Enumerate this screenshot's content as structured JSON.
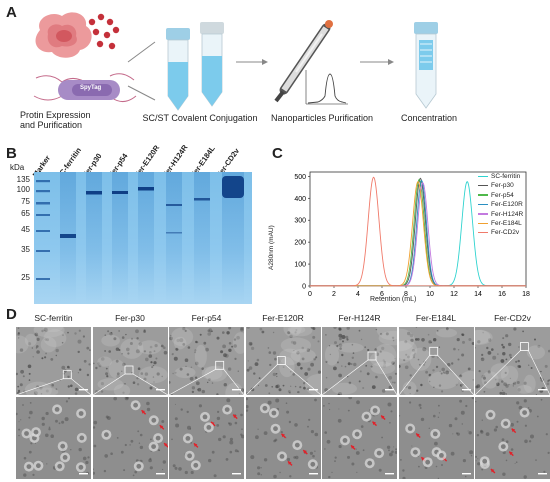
{
  "panels": {
    "a": "A",
    "b": "B",
    "c": "C",
    "d": "D"
  },
  "panel_a": {
    "step1_label": "Protin Expression\nand Purification",
    "step2_label": "SC/ST Covalent Conjugation",
    "step3_label": "Nanoparticles Purification",
    "step4_label": "Concentration",
    "bacterium_text": "SpyTag",
    "colors": {
      "cell": "#e8868a",
      "tube_liquid": "#8fd3ef",
      "cap_blue": "#9ecfe6",
      "red_dots": "#c4303a"
    }
  },
  "panel_b": {
    "unit_label": "kDa",
    "lanes": [
      "Marker",
      "SC-ferritin",
      "Fer-p30",
      "Fer-p54",
      "Fer-E120R",
      "Fer-H124R",
      "Fer-E184L",
      "Fer-CD2v"
    ],
    "marker_kda": [
      "135",
      "100",
      "75",
      "65",
      "45",
      "35",
      "25"
    ],
    "gel_color": "#6fb3e4"
  },
  "chart_data": {
    "type": "line",
    "xlabel": "Retention (mL)",
    "ylabel": "A280nm (mAU)",
    "xlim": [
      0,
      18
    ],
    "ylim": [
      0,
      520
    ],
    "xticks": [
      "0",
      "2",
      "4",
      "6",
      "8",
      "10",
      "12",
      "14",
      "16",
      "18"
    ],
    "yticks": [
      "0",
      "100",
      "200",
      "300",
      "400",
      "500"
    ],
    "legend_position": "top-right",
    "series": [
      {
        "name": "SC-ferritin",
        "color": "#2fd3cf",
        "peak_x": 13.1,
        "peak_y": 475,
        "width": 0.45
      },
      {
        "name": "Fer-p30",
        "color": "#555555",
        "peak_x": 9.2,
        "peak_y": 490,
        "width": 0.42
      },
      {
        "name": "Fer-p54",
        "color": "#4fb84b",
        "peak_x": 9.1,
        "peak_y": 485,
        "width": 0.42
      },
      {
        "name": "Fer-E120R",
        "color": "#2a8fc1",
        "peak_x": 9.3,
        "peak_y": 480,
        "width": 0.4
      },
      {
        "name": "Fer-H124R",
        "color": "#c37adf",
        "peak_x": 9.4,
        "peak_y": 470,
        "width": 0.42
      },
      {
        "name": "Fer-E184L",
        "color": "#f0a030",
        "peak_x": 9.0,
        "peak_y": 475,
        "width": 0.45
      },
      {
        "name": "Fer-CD2v",
        "color": "#f07a6a",
        "peak_x": 5.3,
        "peak_y": 495,
        "width": 0.45
      }
    ]
  },
  "panel_d": {
    "samples": [
      "SC-ferritin",
      "Fer-p30",
      "Fer-p54",
      "Fer-E120R",
      "Fer-H124R",
      "Fer-E184L",
      "Fer-CD2v"
    ]
  }
}
